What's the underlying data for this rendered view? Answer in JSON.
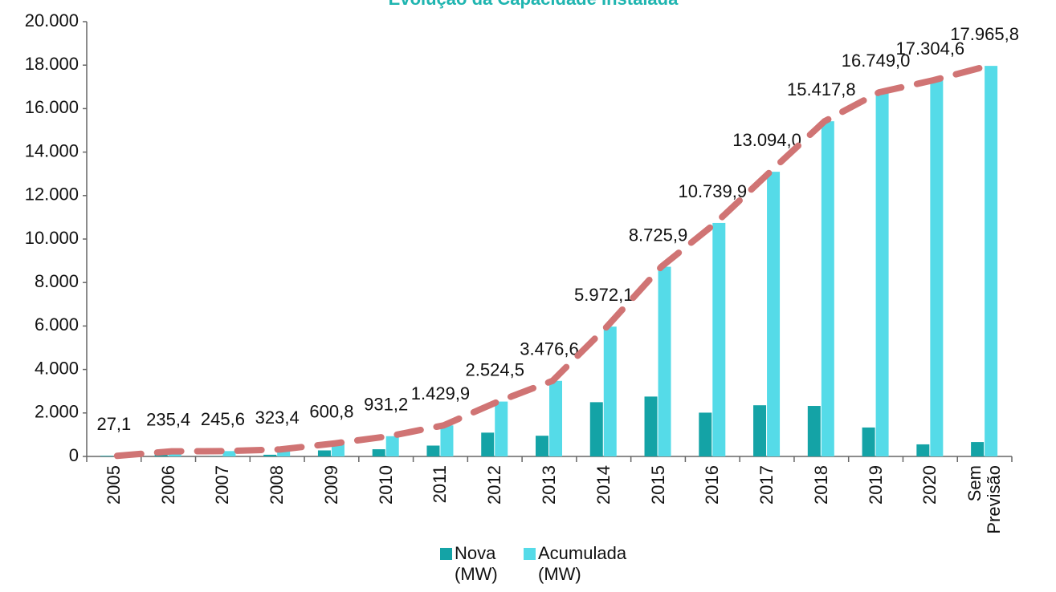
{
  "chart_data": {
    "type": "bar",
    "title": "Evolução da Capacidade Instalada",
    "categories": [
      "2005",
      "2006",
      "2007",
      "2008",
      "2009",
      "2010",
      "2011",
      "2012",
      "2013",
      "2014",
      "2015",
      "2016",
      "2017",
      "2018",
      "2019",
      "2020",
      "Sem Previsão"
    ],
    "series": [
      {
        "name": "Nova (MW)",
        "color": "#14a3a6",
        "values": [
          27.1,
          208.3,
          10.2,
          77.8,
          277.4,
          330.4,
          498.7,
          1094.6,
          952.1,
          2495.5,
          2753.8,
          2014.0,
          2354.1,
          2323.8,
          1331.2,
          555.6,
          661.2
        ]
      },
      {
        "name": "Acumulada (MW)",
        "color": "#55dbe8",
        "values": [
          27.1,
          235.4,
          245.6,
          323.4,
          600.8,
          931.2,
          1429.9,
          2524.5,
          3476.6,
          5972.1,
          8725.9,
          10739.9,
          13094.0,
          15417.8,
          16749.0,
          17304.6,
          17965.8
        ],
        "value_labels": [
          "27,1",
          "235,4",
          "245,6",
          "323,4",
          "600,8",
          "931,2",
          "1.429,9",
          "2.524,5",
          "3.476,6",
          "5.972,1",
          "8.725,9",
          "10.739,9",
          "13.094,0",
          "15.417,8",
          "16.749,0",
          "17.304,6",
          "17.965,8"
        ],
        "trend_color": "#d07474"
      }
    ],
    "ylim": [
      0,
      20000
    ],
    "yticks": [
      0,
      {
        "value": 2000,
        "label": "2.000"
      },
      {
        "value": 4000,
        "label": "4.000"
      },
      {
        "value": 6000,
        "label": "6.000"
      },
      {
        "value": 8000,
        "label": "8.000"
      },
      {
        "value": 10000,
        "label": "10.000"
      },
      {
        "value": 12000,
        "label": "12.000"
      },
      {
        "value": 14000,
        "label": "14.000"
      },
      {
        "value": 16000,
        "label": "16.000"
      },
      {
        "value": 18000,
        "label": "18.000"
      },
      {
        "value": 20000,
        "label": "20.000"
      }
    ],
    "grid": false
  }
}
